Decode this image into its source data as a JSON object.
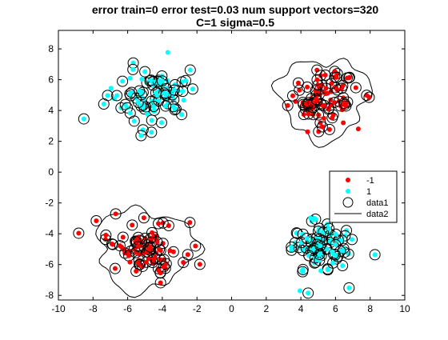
{
  "chart_data": {
    "type": "scatter",
    "title": [
      "error train=0 error test=0.03 num support vectors=320",
      "C=1 sigma=0.5"
    ],
    "xlabel": "",
    "ylabel": "",
    "xlim": [
      -10,
      10
    ],
    "ylim": [
      -8.3,
      9.2
    ],
    "xticks": [
      -10,
      -8,
      -6,
      -4,
      -2,
      0,
      2,
      4,
      6,
      8,
      10
    ],
    "yticks": [
      -8,
      -6,
      -4,
      -2,
      0,
      2,
      4,
      6,
      8
    ],
    "grid": false,
    "legend_position": "right",
    "clusters": [
      {
        "label": "-1",
        "center": [
          5.3,
          4.8
        ],
        "spread": [
          1.0,
          0.9
        ],
        "count": 85
      },
      {
        "label": "-1",
        "center": [
          -5.0,
          -5.0
        ],
        "spread": [
          1.1,
          0.9
        ],
        "count": 85
      },
      {
        "label": "1",
        "center": [
          -4.8,
          5.0
        ],
        "spread": [
          1.1,
          1.0
        ],
        "count": 85
      },
      {
        "label": "1",
        "center": [
          5.0,
          -5.0
        ],
        "spread": [
          1.0,
          0.95
        ],
        "count": 85
      }
    ],
    "series": [
      {
        "name": "-1",
        "color": "#ff0000",
        "marker": "dot"
      },
      {
        "name": "1",
        "color": "#00ffff",
        "marker": "dot"
      },
      {
        "name": "data1",
        "color": "#000000",
        "marker": "circle"
      },
      {
        "name": "data2",
        "color": "#000000",
        "marker": "line"
      }
    ]
  }
}
